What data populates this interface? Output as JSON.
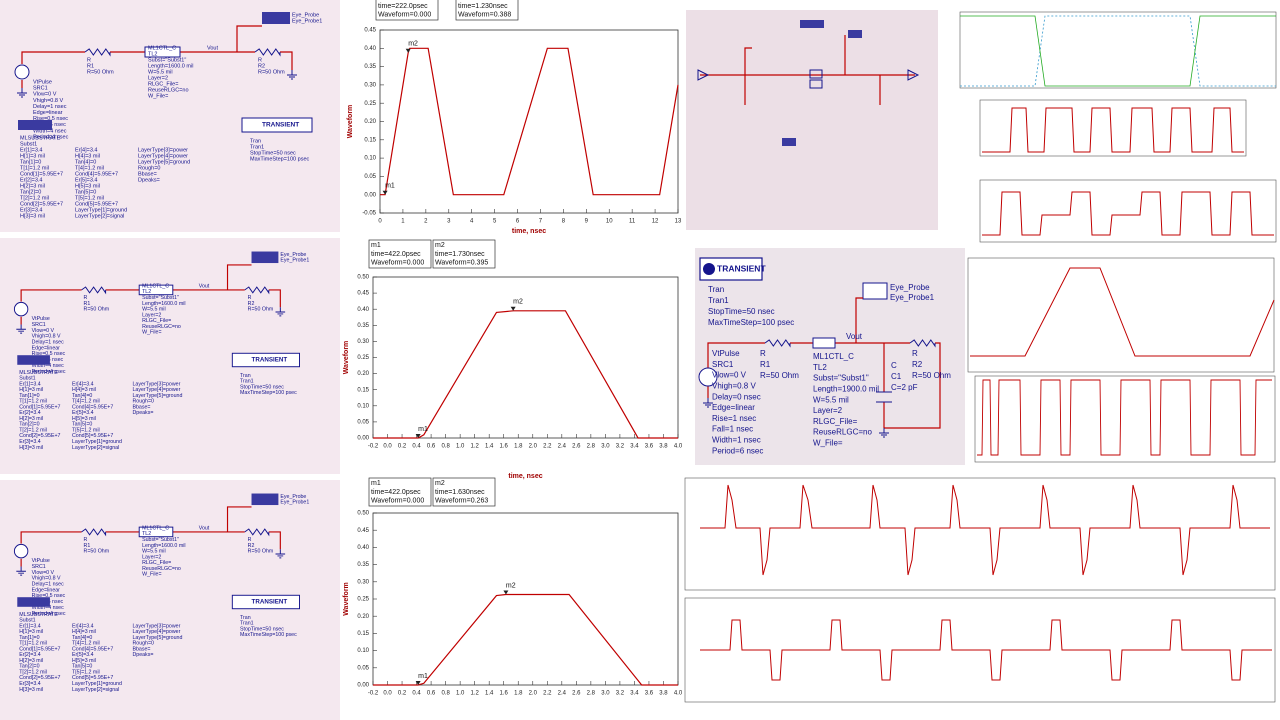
{
  "chart_data": [
    {
      "type": "line",
      "x_label": "time, nsec",
      "y_label": "Waveform",
      "color": "#c00000",
      "xlim": [
        0,
        13
      ],
      "xticks": [
        0,
        1,
        2,
        3,
        4,
        5,
        6,
        7,
        8,
        9,
        10,
        11,
        12,
        13
      ],
      "ylim": [
        -0.05,
        0.45
      ],
      "yticks": [
        -0.05,
        {
          "value": 0,
          "label": "0.00"
        },
        0.05,
        {
          "value": 0.1,
          "label": "0.10"
        },
        0.15,
        {
          "value": 0.2,
          "label": "0.20"
        },
        0.25,
        {
          "value": 0.3,
          "label": "0.30"
        },
        0.35,
        {
          "value": 0.4,
          "label": "0.40"
        },
        0.45
      ],
      "x": [
        0,
        0.222,
        1.23,
        1.3,
        2.1,
        3.2,
        5.4,
        7.3,
        8.2,
        9.3,
        12.2,
        13
      ],
      "values": [
        0,
        0,
        0.388,
        0.4,
        0.4,
        0,
        0,
        0.4,
        0.4,
        0,
        0,
        0.3
      ],
      "markers": [
        {
          "label": "m1",
          "x": 0.222,
          "y": 0,
          "lines": [
            "time=222.0psec",
            "Waveform=0.000"
          ]
        },
        {
          "label": "m2",
          "x": 1.23,
          "y": 0.388,
          "lines": [
            "time=1.230nsec",
            "Waveform=0.388"
          ]
        }
      ]
    },
    {
      "type": "line",
      "x_label": "time, nsec",
      "y_label": "Waveform",
      "color": "#c00000",
      "xlim": [
        -0.2,
        4.0
      ],
      "xticks": [
        -0.2,
        {
          "value": 0,
          "label": "0.0"
        },
        0.2,
        0.4,
        0.6,
        0.8,
        {
          "value": 1,
          "label": "1.0"
        },
        1.2,
        1.4,
        1.6,
        1.8,
        {
          "value": 2,
          "label": "2.0"
        },
        2.2,
        2.4,
        2.6,
        2.8,
        {
          "value": 3,
          "label": "3.0"
        },
        3.2,
        3.4,
        3.6,
        3.8,
        {
          "value": 4,
          "label": "4.0"
        }
      ],
      "ylim": [
        0,
        0.5
      ],
      "yticks": [
        {
          "value": 0,
          "label": "0.00"
        },
        0.05,
        {
          "value": 0.1,
          "label": "0.10"
        },
        0.15,
        {
          "value": 0.2,
          "label": "0.20"
        },
        0.25,
        {
          "value": 0.3,
          "label": "0.30"
        },
        0.35,
        {
          "value": 0.4,
          "label": "0.40"
        },
        0.45,
        {
          "value": 0.5,
          "label": "0.50"
        }
      ],
      "x": [
        -0.2,
        0.422,
        0.5,
        1.5,
        1.73,
        2.45,
        3.45,
        4.0
      ],
      "values": [
        0,
        0,
        0.01,
        0.39,
        0.395,
        0.395,
        0,
        0
      ],
      "markers": [
        {
          "label": "m1",
          "x": 0.422,
          "y": 0,
          "lines": [
            "time=422.0psec",
            "Waveform=0.000"
          ]
        },
        {
          "label": "m2",
          "x": 1.73,
          "y": 0.395,
          "lines": [
            "time=1.730nsec",
            "Waveform=0.395"
          ]
        }
      ]
    },
    {
      "type": "line",
      "y_label": "Waveform",
      "color": "#c00000",
      "xlim": [
        -0.2,
        4.0
      ],
      "xticks": [
        -0.2,
        {
          "value": 0,
          "label": "0.0"
        },
        0.2,
        0.4,
        0.6,
        0.8,
        {
          "value": 1,
          "label": "1.0"
        },
        1.2,
        1.4,
        1.6,
        1.8,
        {
          "value": 2,
          "label": "2.0"
        },
        2.2,
        2.4,
        2.6,
        2.8,
        {
          "value": 3,
          "label": "3.0"
        },
        3.2,
        3.4,
        3.6,
        3.8,
        {
          "value": 4,
          "label": "4.0"
        }
      ],
      "ylim": [
        0,
        0.5
      ],
      "yticks": [
        {
          "value": 0,
          "label": "0.00"
        },
        0.05,
        {
          "value": 0.1,
          "label": "0.10"
        },
        0.15,
        {
          "value": 0.2,
          "label": "0.20"
        },
        0.25,
        {
          "value": 0.3,
          "label": "0.30"
        },
        0.35,
        {
          "value": 0.4,
          "label": "0.40"
        },
        0.45,
        {
          "value": 0.5,
          "label": "0.50"
        }
      ],
      "x": [
        -0.2,
        0.422,
        0.5,
        1.5,
        1.63,
        2.5,
        3.5,
        4.0
      ],
      "values": [
        0,
        0,
        0.005,
        0.26,
        0.263,
        0.263,
        0,
        0
      ],
      "markers": [
        {
          "label": "m1",
          "x": 0.422,
          "y": 0,
          "lines": [
            "time=422.0psec",
            "Waveform=0.000"
          ]
        },
        {
          "label": "m2",
          "x": 1.63,
          "y": 0.263,
          "lines": [
            "time=1.630nsec",
            "Waveform=0.263"
          ]
        }
      ]
    }
  ],
  "transient_schematic": {
    "controller": [
      "TRANSIENT",
      "Tran",
      "Tran1",
      "StopTime=50 nsec",
      "MaxTimeStep=100 psec"
    ],
    "probe": [
      "Eye_Probe",
      "Eye_Probe1"
    ],
    "node": "Vout",
    "source": [
      "VtPulse",
      "SRC1",
      "Vlow=0 V",
      "Vhigh=0.8 V",
      "Delay=0 nsec",
      "Edge=linear",
      "Rise=1 nsec",
      "Fall=1 nsec",
      "Width=1 nsec",
      "Period=6 nsec"
    ],
    "r1": [
      "R",
      "R1",
      "R=50 Ohm"
    ],
    "tline": [
      "ML1CTL_C",
      "TL2",
      "Subst=\"Subst1\"",
      "Length=1900.0 mil",
      "W=5.5 mil",
      "Layer=2",
      "RLGC_File=",
      "ReuseRLGC=no",
      "W_File="
    ],
    "cap": [
      "C",
      "C1",
      "C=2 pF"
    ],
    "r2": [
      "R",
      "R2",
      "R=50 Ohm"
    ]
  },
  "left_schematic": {
    "source": [
      "VtPulse",
      "SRC1",
      "Vlow=0 V",
      "Vhigh=0.8 V",
      "Delay=1 nsec",
      "Edge=linear",
      "Rise=0.5 nsec",
      "Fall=0.5 nsec",
      "Width=4 nsec",
      "Period=4 nsec"
    ],
    "r1": [
      "R",
      "R1",
      "R=50 Ohm"
    ],
    "tline": [
      "ML1CTL_C",
      "TL2",
      "Subst=\"Subst1\"",
      "Length=1600.0 mil",
      "W=5.5 mil",
      "Layer=2",
      "RLGC_File=",
      "ReuseRLGC=no",
      "W_File="
    ],
    "node": "Vout",
    "r2": [
      "R",
      "R2",
      "R=50 Ohm"
    ],
    "probe": [
      "Eye_Probe",
      "Eye_Probe1"
    ],
    "controller": [
      "TRANSIENT",
      "Tran",
      "Tran1",
      "StopTime=50 nsec",
      "MaxTimeStep=100 psec"
    ],
    "substrate": [
      "MLSUBSTRATE",
      "Subst1"
    ],
    "params": [
      [
        "Er[1]=3.4",
        "H[1]=3 mil",
        "Tan[1]=0",
        "T[1]=1.2 mil",
        "Cond[1]=5.95E+7",
        "Er[2]=3.4",
        "H[2]=3 mil",
        "Tan[2]=0",
        "T[2]=1.2 mil",
        "Cond[2]=5.95E+7",
        "Er[3]=3.4",
        "H[3]=3 mil"
      ],
      [
        "Er[4]=3.4",
        "H[4]=3 mil",
        "Tan[4]=0",
        "T[4]=1.2 mil",
        "Cond[4]=5.95E+7",
        "Er[5]=3.4",
        "H[5]=3 mil",
        "Tan[5]=0",
        "T[5]=1.2 mil",
        "Cond[5]=5.95E+7",
        "LayerType[1]=ground",
        "LayerType[2]=signal"
      ],
      [
        "LayerType[3]=power",
        "LayerType[4]=power",
        "LayerType[5]=ground",
        "Rough=0",
        "Bbase=",
        "Dpeaks="
      ]
    ]
  }
}
